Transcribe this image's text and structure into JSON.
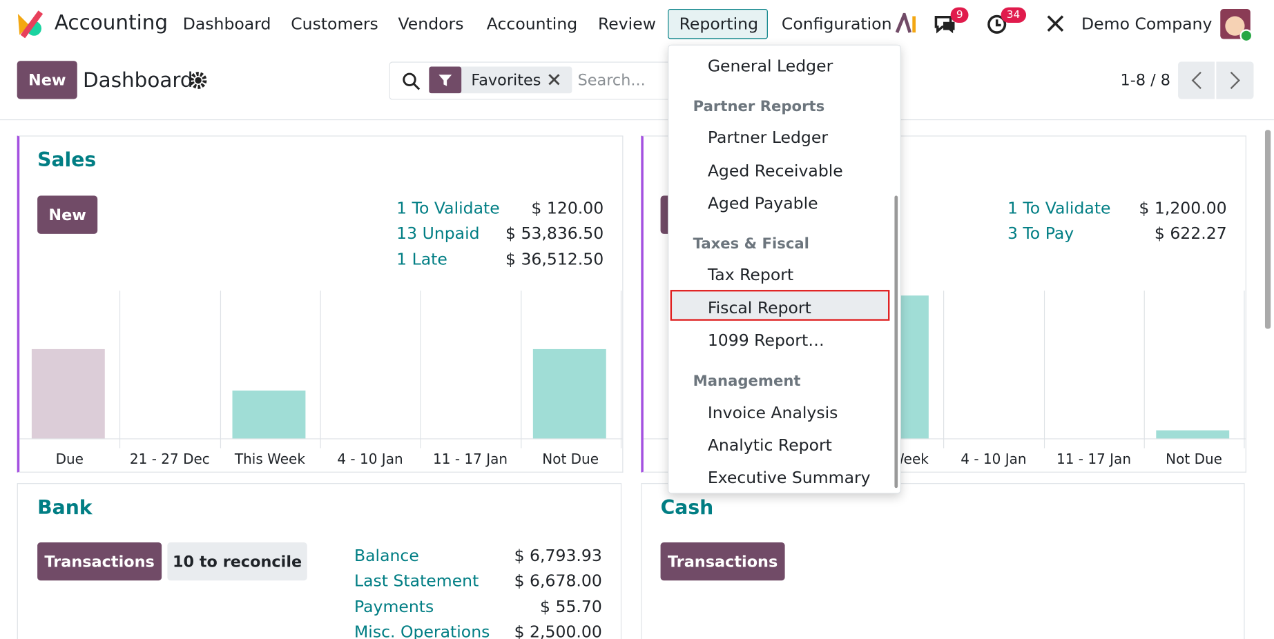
{
  "navbar": {
    "app_name": "Accounting",
    "menu": [
      "Dashboard",
      "Customers",
      "Vendors",
      "Accounting",
      "Review",
      "Reporting",
      "Configuration"
    ],
    "messages_badge": 9,
    "activities_badge": 34,
    "company": "Demo Company"
  },
  "control_panel": {
    "new_button": "New",
    "title": "Dashboard",
    "facet": "Favorites",
    "search_placeholder": "Search...",
    "pager": "1-8 / 8"
  },
  "reporting_menu": [
    {
      "kind": "item",
      "text": "General Ledger"
    },
    {
      "kind": "header",
      "text": "Partner Reports"
    },
    {
      "kind": "item",
      "text": "Partner Ledger"
    },
    {
      "kind": "item",
      "text": "Aged Receivable"
    },
    {
      "kind": "item",
      "text": "Aged Payable"
    },
    {
      "kind": "header",
      "text": "Taxes & Fiscal"
    },
    {
      "kind": "item",
      "text": "Tax Report"
    },
    {
      "kind": "item",
      "text": "Fiscal Report",
      "selected": true
    },
    {
      "kind": "item",
      "text": "1099 Report…"
    },
    {
      "kind": "header",
      "text": "Management"
    },
    {
      "kind": "item",
      "text": "Invoice Analysis"
    },
    {
      "kind": "item",
      "text": "Analytic Report"
    },
    {
      "kind": "item",
      "text": "Executive Summary"
    }
  ],
  "cards": {
    "sales": {
      "title": "Sales",
      "button": "New",
      "stats": [
        [
          "1 To Validate",
          "$ 120.00"
        ],
        [
          "13 Unpaid",
          "$ 53,836.50"
        ],
        [
          "1 Late",
          "$ 36,512.50"
        ]
      ],
      "graph": {
        "categories": [
          "Due",
          "21 - 27 Dec",
          "This Week",
          "4 - 10 Jan",
          "11 - 17 Jan",
          "Not Due"
        ],
        "values": [
          110,
          0,
          59,
          0,
          0,
          110
        ],
        "colors": [
          "#dccdd8",
          "#a0ddd6",
          "#a0ddd6",
          "#a0ddd6",
          "#a0ddd6",
          "#a0ddd6"
        ]
      }
    },
    "purchase": {
      "stats": [
        [
          "1 To Validate",
          "$ 1,200.00"
        ],
        [
          "3 To Pay",
          "$ 622.27"
        ]
      ],
      "graph": {
        "categories": [
          "This Week",
          "4 - 10 Jan",
          "11 - 17 Jan",
          "Not Due"
        ],
        "values": [
          176,
          0,
          0,
          10
        ],
        "colors": [
          "#a0ddd6",
          "#a0ddd6",
          "#a0ddd6",
          "#a0ddd6"
        ]
      }
    },
    "bank": {
      "title": "Bank",
      "buttons": [
        "Transactions",
        "10 to reconcile"
      ],
      "stats": [
        [
          "Balance",
          "$ 6,793.93"
        ],
        [
          "Last Statement",
          "$ 6,678.00"
        ],
        [
          "Payments",
          "$ 55.70"
        ],
        [
          "Misc. Operations",
          "$ 2,500.00"
        ]
      ]
    },
    "cash": {
      "title": "Cash",
      "button": "Transactions"
    }
  }
}
